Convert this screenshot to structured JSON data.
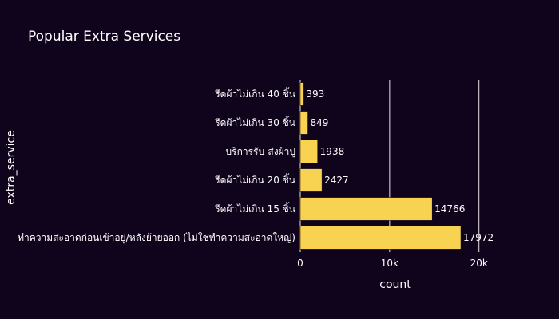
{
  "chart_data": {
    "type": "bar",
    "orientation": "horizontal",
    "title": "Popular Extra Services",
    "xlabel": "count",
    "ylabel": "extra_service",
    "categories": [
      "ทำความสะอาดก่อนเข้าอยู่/หลังย้ายออก (ไม่ใช่ทำความสะอาดใหญ่)",
      "รีดผ้าไม่เกิน 15 ชิ้น",
      "รีดผ้าไม่เกิน 20 ชิ้น",
      "บริการรับ-ส่งผ้าปู",
      "รีดผ้าไม่เกิน 30 ชิ้น",
      "รีดผ้าไม่เกิน 40 ชิ้น"
    ],
    "values": [
      17972,
      14766,
      2427,
      1938,
      849,
      393
    ],
    "data_labels": [
      "17972",
      "14766",
      "2427",
      "1938",
      "849",
      "393"
    ],
    "xticks": [
      0,
      10000,
      20000
    ],
    "xtick_labels": [
      "0",
      "10k",
      "20k"
    ],
    "xlim": [
      0,
      20920
    ],
    "grid": true,
    "colors": {
      "background": "#0f041c",
      "bar": "#f8d352",
      "grid": "#e6e6e6",
      "text": "#ffffff"
    }
  }
}
